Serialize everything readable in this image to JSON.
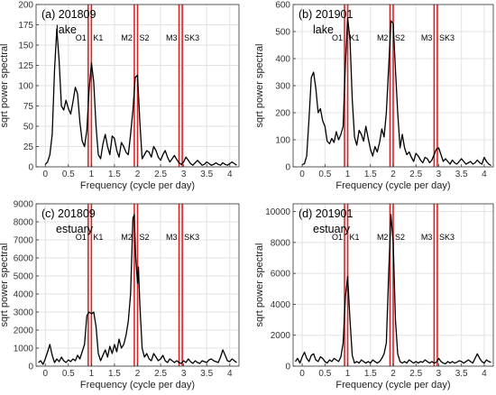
{
  "chart_data": [
    {
      "type": "line",
      "title": "(a) 201809",
      "subtitle": "lake",
      "xlabel": "Frequency (cycle per day)",
      "ylabel": "sqrt power spectral",
      "xlim": [
        -0.2,
        4.2
      ],
      "ylim": [
        0,
        200
      ],
      "xticks": [
        0,
        0.5,
        1,
        1.5,
        2,
        2.5,
        3,
        3.5,
        4
      ],
      "yticks": [
        0,
        25,
        50,
        75,
        100,
        125,
        150,
        175,
        200
      ],
      "grid": true,
      "tidal_bands": [
        {
          "label": "O1",
          "x": 0.93
        },
        {
          "label": "K1",
          "x": 1.0
        },
        {
          "label": "M2",
          "x": 1.93
        },
        {
          "label": "S2",
          "x": 2.0
        },
        {
          "label": "M3",
          "x": 2.9
        },
        {
          "label": "SK3",
          "x": 2.97
        }
      ],
      "series": [
        {
          "color": "#000000",
          "x": [
            0.0,
            0.05,
            0.1,
            0.15,
            0.2,
            0.25,
            0.3,
            0.35,
            0.4,
            0.45,
            0.5,
            0.55,
            0.6,
            0.65,
            0.7,
            0.75,
            0.8,
            0.85,
            0.9,
            0.95,
            1.0,
            1.05,
            1.1,
            1.15,
            1.2,
            1.25,
            1.3,
            1.35,
            1.4,
            1.45,
            1.5,
            1.55,
            1.6,
            1.65,
            1.7,
            1.75,
            1.8,
            1.85,
            1.9,
            1.95,
            2.0,
            2.05,
            2.1,
            2.15,
            2.2,
            2.25,
            2.3,
            2.35,
            2.4,
            2.45,
            2.5,
            2.55,
            2.6,
            2.65,
            2.7,
            2.75,
            2.8,
            2.85,
            2.9,
            2.95,
            3.0,
            3.05,
            3.1,
            3.15,
            3.2,
            3.25,
            3.3,
            3.35,
            3.4,
            3.45,
            3.5,
            3.55,
            3.6,
            3.65,
            3.7,
            3.75,
            3.8,
            3.85,
            3.9,
            3.95,
            4.0,
            4.05,
            4.1,
            4.15
          ],
          "y": [
            3,
            6,
            15,
            40,
            120,
            170,
            130,
            75,
            70,
            82,
            72,
            65,
            80,
            98,
            90,
            55,
            32,
            25,
            45,
            95,
            128,
            105,
            50,
            15,
            10,
            28,
            40,
            25,
            15,
            38,
            35,
            20,
            12,
            30,
            25,
            18,
            15,
            40,
            70,
            110,
            113,
            55,
            10,
            15,
            20,
            18,
            12,
            25,
            20,
            12,
            8,
            15,
            20,
            12,
            6,
            10,
            14,
            9,
            5,
            3,
            6,
            12,
            8,
            4,
            2,
            5,
            8,
            5,
            2,
            3,
            6,
            4,
            2,
            3,
            5,
            3,
            2,
            5,
            3,
            2,
            4,
            6,
            4,
            2
          ]
        }
      ]
    },
    {
      "type": "line",
      "title": "(b) 201901",
      "subtitle": "lake",
      "xlabel": "Frequency (cycle per day)",
      "ylabel": "sqrt power spectral",
      "xlim": [
        -0.2,
        4.2
      ],
      "ylim": [
        0,
        600
      ],
      "xticks": [
        0,
        0.5,
        1,
        1.5,
        2,
        2.5,
        3,
        3.5,
        4
      ],
      "yticks": [
        0,
        100,
        200,
        300,
        400,
        500,
        600
      ],
      "grid": true,
      "tidal_bands": [
        {
          "label": "O1",
          "x": 0.93
        },
        {
          "label": "K1",
          "x": 1.0
        },
        {
          "label": "M2",
          "x": 1.93
        },
        {
          "label": "S2",
          "x": 2.0
        },
        {
          "label": "M3",
          "x": 2.9
        },
        {
          "label": "SK3",
          "x": 2.97
        }
      ],
      "series": [
        {
          "color": "#000000",
          "x": [
            0.0,
            0.05,
            0.1,
            0.15,
            0.2,
            0.25,
            0.3,
            0.35,
            0.4,
            0.45,
            0.5,
            0.55,
            0.6,
            0.65,
            0.7,
            0.75,
            0.8,
            0.85,
            0.9,
            0.95,
            1.0,
            1.05,
            1.1,
            1.15,
            1.2,
            1.25,
            1.3,
            1.35,
            1.4,
            1.45,
            1.5,
            1.55,
            1.6,
            1.65,
            1.7,
            1.75,
            1.8,
            1.85,
            1.9,
            1.95,
            2.0,
            2.05,
            2.1,
            2.15,
            2.2,
            2.25,
            2.3,
            2.35,
            2.4,
            2.45,
            2.5,
            2.55,
            2.6,
            2.65,
            2.7,
            2.75,
            2.8,
            2.85,
            2.9,
            2.95,
            3.0,
            3.05,
            3.1,
            3.15,
            3.2,
            3.25,
            3.3,
            3.35,
            3.4,
            3.45,
            3.5,
            3.55,
            3.6,
            3.65,
            3.7,
            3.75,
            3.8,
            3.85,
            3.9,
            3.95,
            4.0,
            4.05,
            4.1,
            4.15
          ],
          "y": [
            8,
            12,
            40,
            180,
            330,
            350,
            290,
            200,
            215,
            170,
            150,
            95,
            85,
            105,
            90,
            130,
            100,
            120,
            150,
            380,
            550,
            470,
            250,
            110,
            80,
            135,
            120,
            95,
            150,
            105,
            65,
            40,
            75,
            55,
            90,
            140,
            110,
            200,
            370,
            540,
            530,
            360,
            200,
            70,
            120,
            70,
            45,
            55,
            35,
            20,
            50,
            40,
            25,
            15,
            35,
            30,
            15,
            25,
            45,
            65,
            70,
            45,
            20,
            30,
            20,
            10,
            25,
            15,
            10,
            20,
            30,
            20,
            10,
            15,
            20,
            10,
            15,
            25,
            15,
            10,
            35,
            20,
            10,
            5
          ]
        }
      ]
    },
    {
      "type": "line",
      "title": "(c) 201809",
      "subtitle": "estuary",
      "xlabel": "Frequency (cycle per day)",
      "ylabel": "sqrt power spectral",
      "xlim": [
        -0.2,
        4.2
      ],
      "ylim": [
        0,
        9000
      ],
      "xticks": [
        0,
        0.5,
        1,
        1.5,
        2,
        2.5,
        3,
        3.5,
        4
      ],
      "yticks": [
        0,
        1000,
        2000,
        3000,
        4000,
        5000,
        6000,
        7000,
        8000,
        9000
      ],
      "grid": true,
      "tidal_bands": [
        {
          "label": "O1",
          "x": 0.93
        },
        {
          "label": "K1",
          "x": 1.0
        },
        {
          "label": "M2",
          "x": 1.93
        },
        {
          "label": "S2",
          "x": 2.0
        },
        {
          "label": "M3",
          "x": 2.9
        },
        {
          "label": "SK3",
          "x": 2.97
        }
      ],
      "series": [
        {
          "color": "#000000",
          "x": [
            -0.15,
            -0.1,
            -0.05,
            0.0,
            0.05,
            0.1,
            0.15,
            0.2,
            0.25,
            0.3,
            0.35,
            0.4,
            0.45,
            0.5,
            0.55,
            0.6,
            0.65,
            0.7,
            0.75,
            0.8,
            0.85,
            0.9,
            0.95,
            1.0,
            1.05,
            1.1,
            1.15,
            1.2,
            1.25,
            1.3,
            1.35,
            1.4,
            1.45,
            1.5,
            1.55,
            1.6,
            1.65,
            1.7,
            1.75,
            1.8,
            1.85,
            1.9,
            1.93,
            1.96,
            2.0,
            2.02,
            2.05,
            2.1,
            2.15,
            2.2,
            2.25,
            2.3,
            2.35,
            2.4,
            2.45,
            2.5,
            2.55,
            2.6,
            2.65,
            2.7,
            2.75,
            2.8,
            2.85,
            2.9,
            2.95,
            3.0,
            3.05,
            3.1,
            3.15,
            3.2,
            3.25,
            3.3,
            3.35,
            3.4,
            3.45,
            3.5,
            3.55,
            3.6,
            3.65,
            3.7,
            3.75,
            3.8,
            3.85,
            3.9,
            3.95,
            4.0,
            4.05,
            4.1,
            4.15
          ],
          "y": [
            200,
            300,
            100,
            400,
            800,
            1200,
            600,
            200,
            400,
            250,
            500,
            300,
            200,
            350,
            250,
            400,
            300,
            600,
            400,
            800,
            1200,
            2800,
            3000,
            2900,
            3000,
            2200,
            700,
            300,
            600,
            900,
            500,
            1100,
            700,
            1200,
            800,
            1500,
            1000,
            1200,
            1700,
            2500,
            4000,
            8200,
            8400,
            6000,
            4600,
            5500,
            3400,
            1000,
            500,
            700,
            400,
            300,
            700,
            500,
            300,
            400,
            600,
            300,
            200,
            400,
            300,
            200,
            300,
            200,
            150,
            300,
            200,
            400,
            250,
            150,
            300,
            200,
            150,
            300,
            250,
            200,
            350,
            400,
            300,
            250,
            200,
            500,
            900,
            600,
            300,
            250,
            400,
            300,
            200
          ]
        }
      ]
    },
    {
      "type": "line",
      "title": "(d) 201901",
      "subtitle": "estuary",
      "xlabel": "Frequency (cycle per day)",
      "ylabel": "sqrt power spectral",
      "xlim": [
        -0.2,
        4.2
      ],
      "ylim": [
        0,
        10500
      ],
      "xticks": [
        0,
        0.5,
        1,
        1.5,
        2,
        2.5,
        3,
        3.5,
        4
      ],
      "yticks": [
        0,
        2000,
        4000,
        6000,
        8000,
        10000
      ],
      "grid": true,
      "tidal_bands": [
        {
          "label": "O1",
          "x": 0.93
        },
        {
          "label": "K1",
          "x": 1.0
        },
        {
          "label": "M2",
          "x": 1.93
        },
        {
          "label": "S2",
          "x": 2.0
        },
        {
          "label": "M3",
          "x": 2.9
        },
        {
          "label": "SK3",
          "x": 2.97
        }
      ],
      "series": [
        {
          "color": "#000000",
          "x": [
            -0.15,
            -0.1,
            -0.05,
            0.0,
            0.05,
            0.1,
            0.15,
            0.2,
            0.25,
            0.3,
            0.35,
            0.4,
            0.45,
            0.5,
            0.55,
            0.6,
            0.65,
            0.7,
            0.75,
            0.8,
            0.85,
            0.9,
            0.95,
            1.0,
            1.05,
            1.1,
            1.15,
            1.2,
            1.25,
            1.3,
            1.35,
            1.4,
            1.45,
            1.5,
            1.55,
            1.6,
            1.65,
            1.7,
            1.75,
            1.8,
            1.85,
            1.9,
            1.95,
            2.0,
            2.05,
            2.1,
            2.15,
            2.2,
            2.25,
            2.3,
            2.35,
            2.4,
            2.45,
            2.5,
            2.55,
            2.6,
            2.65,
            2.7,
            2.75,
            2.8,
            2.85,
            2.9,
            2.95,
            3.0,
            3.05,
            3.1,
            3.15,
            3.2,
            3.25,
            3.3,
            3.35,
            3.4,
            3.45,
            3.5,
            3.55,
            3.6,
            3.65,
            3.7,
            3.75,
            3.8,
            3.85,
            3.9,
            3.95,
            4.0,
            4.05,
            4.1,
            4.15
          ],
          "y": [
            300,
            500,
            200,
            600,
            900,
            500,
            300,
            700,
            800,
            400,
            300,
            600,
            500,
            300,
            200,
            400,
            300,
            500,
            400,
            300,
            600,
            1500,
            4500,
            5800,
            3000,
            700,
            200,
            300,
            200,
            400,
            300,
            200,
            300,
            200,
            400,
            300,
            200,
            300,
            500,
            800,
            1500,
            6000,
            9800,
            8000,
            3000,
            800,
            300,
            200,
            300,
            200,
            400,
            300,
            200,
            300,
            200,
            300,
            250,
            400,
            300,
            200,
            300,
            200,
            250,
            500,
            300,
            200,
            150,
            300,
            200,
            300,
            200,
            250,
            350,
            300,
            200,
            300,
            400,
            300,
            200,
            500,
            800,
            500,
            300,
            200,
            400,
            300,
            250
          ]
        }
      ]
    }
  ]
}
